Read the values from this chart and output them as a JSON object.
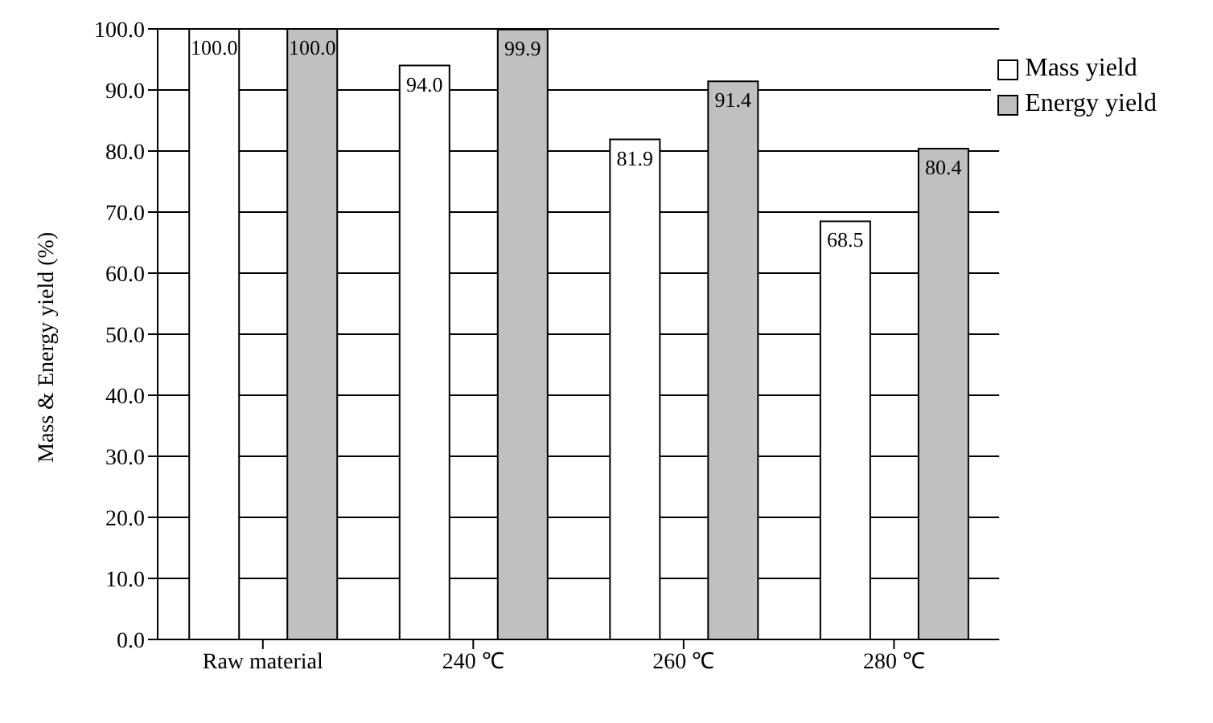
{
  "chart_data": {
    "type": "bar",
    "ylabel": "Mass & Energy yield (%)",
    "categories": [
      "Raw material",
      "240 ℃",
      "260 ℃",
      "280 ℃"
    ],
    "series": [
      {
        "name": "Mass yield",
        "color": "#ffffff",
        "values": [
          100,
          94.0,
          81.9,
          68.5
        ],
        "value_labels": [
          "100.0",
          "94.0",
          "81.9",
          "68.5"
        ]
      },
      {
        "name": "Energy yield",
        "color": "#c0c0c0",
        "values": [
          100,
          99.9,
          91.4,
          80.4
        ],
        "value_labels": [
          "100.0",
          "99.9",
          "91.4",
          "80.4"
        ]
      }
    ],
    "ylim": [
      0,
      100
    ],
    "yticks": [
      {
        "value": 0,
        "label": "0.0"
      },
      {
        "value": 10,
        "label": "10.0"
      },
      {
        "value": 20,
        "label": "20.0"
      },
      {
        "value": 30,
        "label": "30.0"
      },
      {
        "value": 40,
        "label": "40.0"
      },
      {
        "value": 50,
        "label": "50.0"
      },
      {
        "value": 60,
        "label": "60.0"
      },
      {
        "value": 70,
        "label": "70.0"
      },
      {
        "value": 80,
        "label": "80.0"
      },
      {
        "value": 90,
        "label": "90.0"
      },
      {
        "value": 100,
        "label": "100.0"
      }
    ],
    "grid": "y",
    "legend": "top right"
  }
}
